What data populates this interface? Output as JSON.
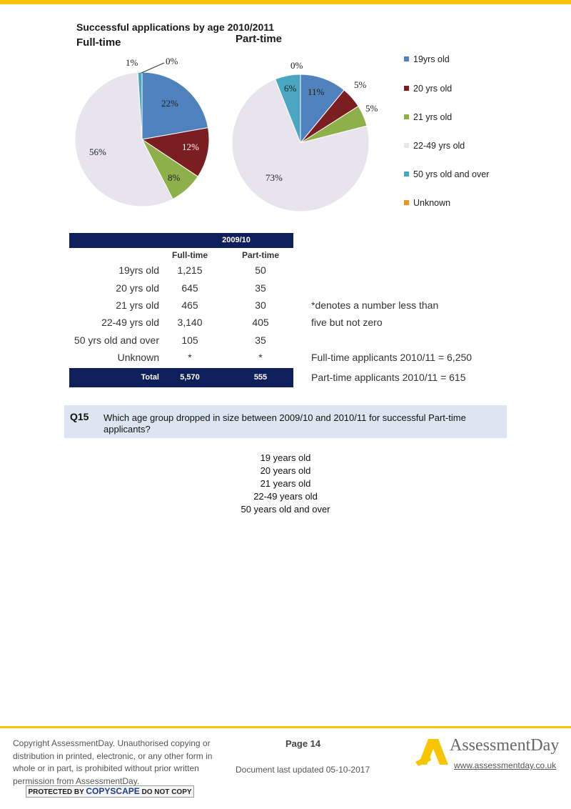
{
  "header": {
    "title": "Successful applications by age 2010/2011",
    "left_chart_title": "Full-time",
    "right_chart_title": "Part-time"
  },
  "chart_data": [
    {
      "type": "pie",
      "title": "Full-time",
      "categories": [
        "19yrs old",
        "20 yrs old",
        "21 yrs old",
        "22-49 yrs old",
        "50 yrs old and over",
        "Unknown"
      ],
      "values": [
        22,
        12,
        8,
        56,
        1,
        0
      ],
      "labels": [
        "22%",
        "12%",
        "8%",
        "56%",
        "1%",
        "0%"
      ],
      "unit": "%"
    },
    {
      "type": "pie",
      "title": "Part-time",
      "categories": [
        "19yrs old",
        "20 yrs old",
        "21 yrs old",
        "22-49 yrs old",
        "50 yrs old and over",
        "Unknown"
      ],
      "values": [
        11,
        5,
        5,
        73,
        6,
        0
      ],
      "labels": [
        "11%",
        "5%",
        "5%",
        "73%",
        "6%",
        "0%"
      ],
      "unit": "%"
    }
  ],
  "legend": [
    {
      "label": "19yrs old",
      "color": "#4f81bd"
    },
    {
      "label": "20 yrs old",
      "color": "#7b1e22"
    },
    {
      "label": "21 yrs old",
      "color": "#8db04b"
    },
    {
      "label": "22-49 yrs old",
      "color": "#e8e4ee"
    },
    {
      "label": "50 yrs old and over",
      "color": "#4ba7bf"
    },
    {
      "label": "Unknown",
      "color": "#e8932c"
    }
  ],
  "table": {
    "period": "2009/10",
    "columns": [
      "Full-time",
      "Part-time"
    ],
    "rows": [
      {
        "label": "19yrs old",
        "full": "1,215",
        "part": "50"
      },
      {
        "label": "20 yrs old",
        "full": "645",
        "part": "35"
      },
      {
        "label": "21 yrs old",
        "full": "465",
        "part": "30"
      },
      {
        "label": "22-49 yrs old",
        "full": "3,140",
        "part": "405"
      },
      {
        "label": "50 yrs old and over",
        "full": "105",
        "part": "35"
      },
      {
        "label": "Unknown",
        "full": "*",
        "part": "*"
      }
    ],
    "total": {
      "label": "Total",
      "full": "5,570",
      "part": "555"
    }
  },
  "notes": {
    "asterisk_line1": "*denotes a number less than",
    "asterisk_line2": "five but not zero",
    "full_time_applicants": "Full-time applicants 2010/11 = 6,250",
    "part_time_applicants": "Part-time applicants 2010/11 = 615"
  },
  "question": {
    "number": "Q15",
    "text": "Which age group dropped in size between 2009/10 and 2010/11 for successful Part-time applicants?",
    "options": [
      "19 years old",
      "20 years old",
      "21 years old",
      "22-49 years old",
      "50 years old and over"
    ]
  },
  "footer": {
    "copyright": "Copyright AssessmentDay. Unauthorised copying or distribution in printed, electronic, or any other form in whole or in part, is prohibited without prior written permission from AssessmentDay.",
    "page": "Page 14",
    "updated": "Document last updated 05-10-2017",
    "brand": "AssessmentDay",
    "url": "www.assessmentday.co.uk",
    "copyscape_a": "PROTECTED BY ",
    "copyscape_b": "COPYSCAPE",
    "copyscape_c": " DO NOT COPY"
  }
}
